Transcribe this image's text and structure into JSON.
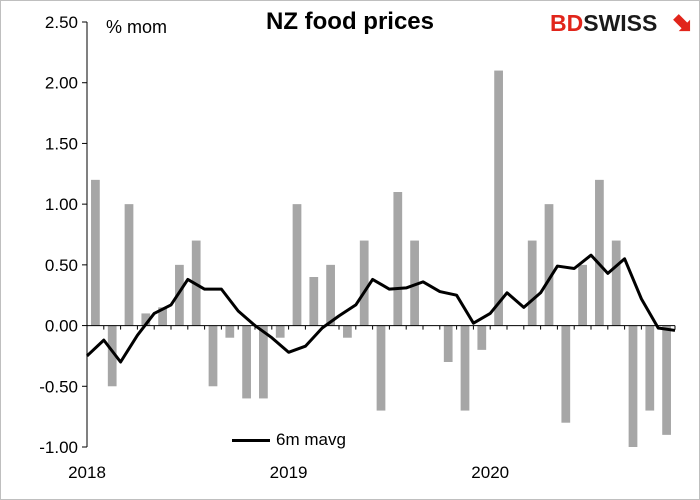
{
  "chart_data": {
    "type": "bar",
    "title": "NZ food prices",
    "ylabel": "% mom",
    "ylim": [
      -1.0,
      2.5
    ],
    "yticks": [
      "2.50",
      "2.00",
      "1.50",
      "1.00",
      "0.50",
      "0.00",
      "-0.50",
      "-1.00"
    ],
    "ytick_values": [
      2.5,
      2.0,
      1.5,
      1.0,
      0.5,
      0.0,
      -0.5,
      -1.0
    ],
    "xtick_labels": [
      {
        "label": "2018",
        "index": 0
      },
      {
        "label": "2019",
        "index": 12
      },
      {
        "label": "2020",
        "index": 24
      }
    ],
    "bar_color": "#a6a6a6",
    "line_color": "#000000",
    "series": [
      {
        "type": "bar",
        "values": [
          1.2,
          -0.5,
          1.0,
          0.1,
          0.15,
          0.5,
          0.7,
          -0.5,
          -0.1,
          -0.6,
          -0.6,
          -0.1,
          1.0,
          0.4,
          0.5,
          -0.1,
          0.7,
          -0.7,
          1.1,
          0.7,
          0.0,
          -0.3,
          -0.7,
          -0.2,
          2.1,
          0.0,
          0.7,
          1.0,
          -0.8,
          0.5,
          1.2,
          0.7,
          -1.0,
          -0.7,
          -0.9
        ]
      },
      {
        "type": "line",
        "name": "6m mavg",
        "values": [
          -0.25,
          -0.12,
          -0.3,
          -0.08,
          0.1,
          0.17,
          0.38,
          0.3,
          0.3,
          0.12,
          0.0,
          -0.1,
          -0.22,
          -0.17,
          -0.02,
          0.08,
          0.17,
          0.38,
          0.3,
          0.31,
          0.36,
          0.28,
          0.25,
          0.02,
          0.1,
          0.27,
          0.15,
          0.27,
          0.49,
          0.47,
          0.58,
          0.43,
          0.55,
          0.22,
          -0.02,
          -0.04
        ],
        "x_start": -0.5
      }
    ],
    "grid": false,
    "legend_position": "bottom-left"
  },
  "logo": {
    "part1": "BD",
    "part2": "SWISS"
  },
  "colors": {
    "brand_red": "#e1251b"
  },
  "legend": {
    "label": "6m mavg"
  }
}
